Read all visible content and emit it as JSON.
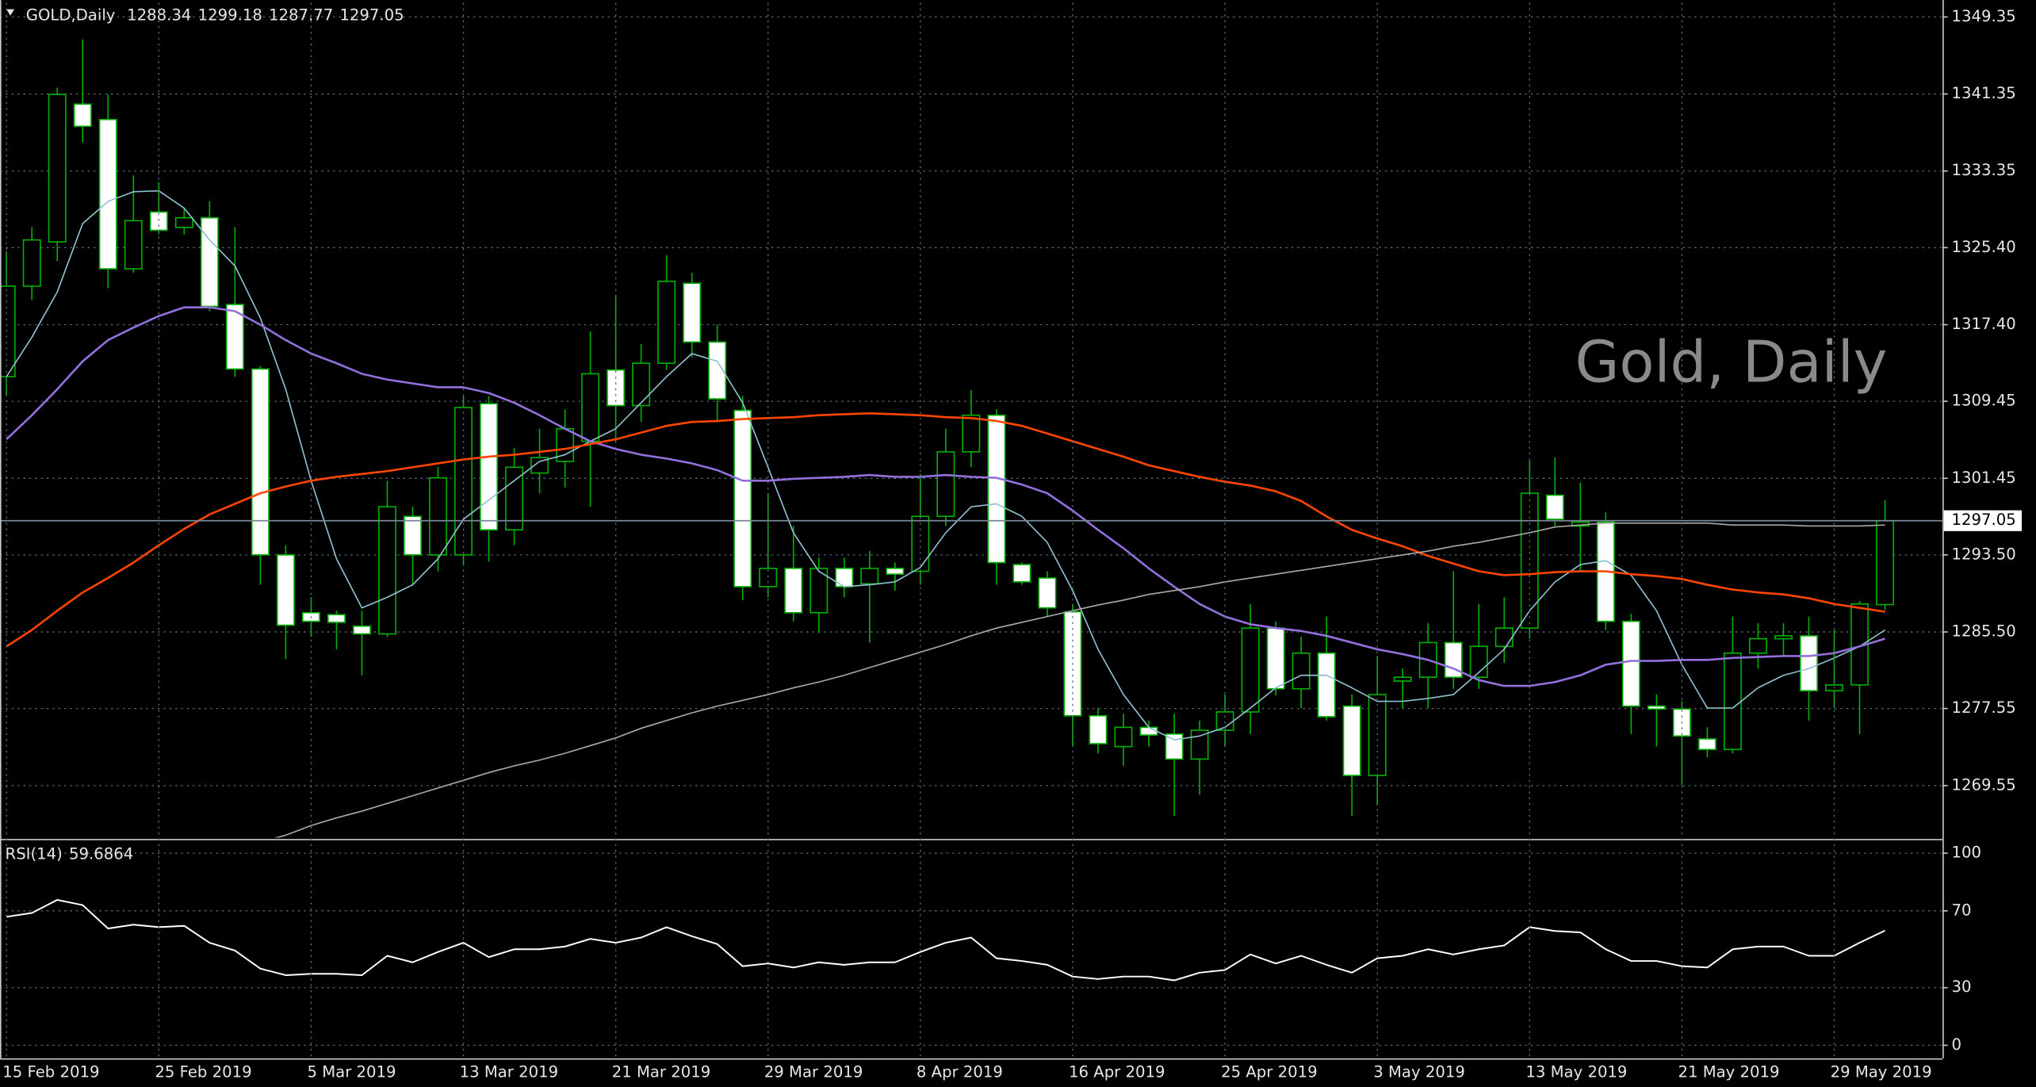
{
  "chart_data": [
    {
      "type": "candlestick",
      "title": "GOLD,Daily",
      "watermark": "Gold, Daily",
      "categories": [
        "15 Feb 2019",
        null,
        null,
        null,
        null,
        null,
        "25 Feb 2019",
        null,
        null,
        null,
        null,
        null,
        "5 Mar 2019",
        null,
        null,
        null,
        null,
        null,
        "13 Mar 2019",
        null,
        null,
        null,
        null,
        null,
        "21 Mar 2019",
        null,
        null,
        null,
        null,
        null,
        "29 Mar 2019",
        null,
        null,
        null,
        null,
        null,
        "8 Apr 2019",
        null,
        null,
        null,
        null,
        null,
        "16 Apr 2019",
        null,
        null,
        null,
        null,
        null,
        "25 Apr 2019",
        null,
        null,
        null,
        null,
        null,
        "3 May 2019",
        null,
        null,
        null,
        null,
        null,
        "13 May 2019",
        null,
        null,
        null,
        null,
        null,
        "21 May 2019",
        null,
        null,
        null,
        null,
        null,
        "29 May 2019",
        null,
        null
      ],
      "open": [
        1312.0,
        1321.4,
        1326.0,
        1340.3,
        1338.7,
        1323.2,
        1329.1,
        1327.5,
        1328.5,
        1319.5,
        1312.8,
        1293.5,
        1287.5,
        1287.3,
        1286.1,
        1285.3,
        1297.5,
        1293.5,
        1293.5,
        1309.2,
        1296.1,
        1302.0,
        1303.2,
        1305.3,
        1312.7,
        1309.0,
        1313.4,
        1321.7,
        1315.6,
        1308.5,
        1290.2,
        1292.1,
        1287.5,
        1292.1,
        1290.5,
        1292.1,
        1291.8,
        1297.5,
        1304.2,
        1308.0,
        1292.5,
        1291.1,
        1287.6,
        1276.8,
        1273.6,
        1275.6,
        1274.9,
        1272.3,
        1275.3,
        1277.2,
        1285.9,
        1279.6,
        1283.3,
        1277.8,
        1270.6,
        1280.4,
        1280.8,
        1284.4,
        1280.8,
        1284.0,
        1285.9,
        1299.7,
        1296.5,
        1296.9,
        1286.6,
        1277.8,
        1277.5,
        1274.4,
        1273.3,
        1283.3,
        1284.8,
        1285.1,
        1279.4,
        1280.0,
        1288.34
      ],
      "high": [
        1325.0,
        1327.5,
        1342.0,
        1347.0,
        1341.3,
        1332.9,
        1332.2,
        1329.5,
        1330.2,
        1327.5,
        1313.1,
        1294.5,
        1289.1,
        1287.7,
        1287.7,
        1301.2,
        1298.5,
        1302.6,
        1310.0,
        1310.0,
        1304.6,
        1306.6,
        1308.6,
        1316.7,
        1320.3,
        1315.4,
        1324.6,
        1322.8,
        1317.4,
        1310.0,
        1299.9,
        1296.5,
        1293.2,
        1293.2,
        1293.9,
        1292.7,
        1301.9,
        1306.6,
        1310.6,
        1308.6,
        1292.7,
        1291.8,
        1288.4,
        1277.6,
        1277.0,
        1276.3,
        1277.0,
        1276.3,
        1279.0,
        1288.4,
        1286.6,
        1285.0,
        1287.1,
        1279.0,
        1283.0,
        1281.7,
        1286.4,
        1291.8,
        1288.4,
        1289.1,
        1303.3,
        1303.6,
        1301.0,
        1297.9,
        1287.4,
        1279.0,
        1278.3,
        1275.6,
        1287.1,
        1286.4,
        1286.4,
        1287.1,
        1285.7,
        1288.7,
        1299.18
      ],
      "low": [
        1310.0,
        1320.0,
        1324.0,
        1336.3,
        1321.2,
        1322.8,
        1326.8,
        1326.8,
        1318.8,
        1312.0,
        1290.4,
        1282.7,
        1285.0,
        1283.7,
        1281.0,
        1285.0,
        1290.4,
        1291.8,
        1292.4,
        1292.8,
        1294.5,
        1299.9,
        1300.5,
        1298.5,
        1305.3,
        1307.3,
        1312.7,
        1314.0,
        1307.3,
        1288.8,
        1289.1,
        1286.6,
        1285.4,
        1289.1,
        1284.4,
        1289.8,
        1290.4,
        1296.5,
        1302.6,
        1290.4,
        1290.4,
        1287.1,
        1273.6,
        1272.9,
        1271.6,
        1273.6,
        1266.4,
        1268.6,
        1273.6,
        1274.9,
        1278.9,
        1277.6,
        1276.3,
        1266.4,
        1267.5,
        1277.6,
        1277.6,
        1279.6,
        1279.6,
        1282.3,
        1284.8,
        1296.5,
        1291.8,
        1285.7,
        1274.9,
        1273.6,
        1269.6,
        1272.5,
        1272.9,
        1281.7,
        1283.0,
        1276.3,
        1277.6,
        1274.9,
        1287.77
      ],
      "close": [
        1321.4,
        1326.2,
        1341.3,
        1338.0,
        1323.2,
        1328.2,
        1327.2,
        1328.5,
        1319.3,
        1312.8,
        1293.5,
        1286.2,
        1286.6,
        1286.5,
        1285.3,
        1298.5,
        1293.5,
        1301.5,
        1308.8,
        1296.1,
        1302.6,
        1303.6,
        1306.6,
        1312.3,
        1309.0,
        1313.4,
        1321.9,
        1315.6,
        1309.7,
        1290.2,
        1292.1,
        1287.5,
        1292.1,
        1290.2,
        1292.1,
        1291.5,
        1297.5,
        1304.2,
        1308.0,
        1292.7,
        1290.7,
        1288.0,
        1276.8,
        1273.9,
        1275.6,
        1274.8,
        1272.3,
        1275.3,
        1277.2,
        1285.9,
        1279.6,
        1283.3,
        1276.7,
        1270.6,
        1279.0,
        1280.8,
        1284.4,
        1280.8,
        1284.0,
        1285.9,
        1299.9,
        1297.2,
        1296.9,
        1286.6,
        1277.8,
        1277.5,
        1274.7,
        1273.3,
        1283.3,
        1284.8,
        1285.1,
        1279.4,
        1280.0,
        1288.4,
        1297.05
      ],
      "candle_color": "#00b000",
      "bull_fill": "#000000",
      "bear_fill": "#ffffff",
      "price_line_color": "#778899",
      "overlays": [
        {
          "color": "#8fc0d0",
          "values": [
            1312.0,
            1316.1,
            1320.8,
            1327.9,
            1330.2,
            1331.2,
            1331.3,
            1329.5,
            1326.2,
            1323.5,
            1318.1,
            1310.7,
            1301.2,
            1293.1,
            1288.0,
            1289.1,
            1290.4,
            1293.1,
            1297.2,
            1299.2,
            1301.2,
            1303.2,
            1303.9,
            1305.3,
            1306.6,
            1309.3,
            1312.0,
            1314.4,
            1313.6,
            1309.3,
            1302.6,
            1295.8,
            1291.8,
            1290.2,
            1290.4,
            1290.7,
            1292.2,
            1295.8,
            1298.5,
            1298.8,
            1297.5,
            1294.8,
            1289.8,
            1283.7,
            1279.0,
            1275.6,
            1274.3,
            1274.7,
            1275.6,
            1277.6,
            1279.7,
            1281.0,
            1281.0,
            1279.7,
            1278.3,
            1278.3,
            1278.6,
            1279.0,
            1281.3,
            1283.7,
            1287.7,
            1290.7,
            1292.5,
            1292.9,
            1291.4,
            1287.7,
            1282.1,
            1277.6,
            1277.6,
            1279.7,
            1281.0,
            1281.7,
            1282.8,
            1284.0,
            1285.7
          ]
        },
        {
          "color": "#9370db",
          "values": [
            1305.5,
            1308.0,
            1310.7,
            1313.6,
            1315.8,
            1317.1,
            1318.3,
            1319.2,
            1319.2,
            1318.8,
            1317.4,
            1315.8,
            1314.4,
            1313.4,
            1312.3,
            1311.7,
            1311.3,
            1310.9,
            1310.9,
            1310.3,
            1309.3,
            1308.0,
            1306.6,
            1305.3,
            1304.5,
            1303.9,
            1303.5,
            1303.0,
            1302.3,
            1301.2,
            1301.2,
            1301.4,
            1301.5,
            1301.6,
            1301.8,
            1301.6,
            1301.6,
            1301.8,
            1301.6,
            1301.5,
            1300.8,
            1299.9,
            1298.1,
            1296.1,
            1294.2,
            1292.1,
            1290.2,
            1288.4,
            1287.1,
            1286.3,
            1285.9,
            1285.6,
            1285.1,
            1284.4,
            1283.7,
            1283.2,
            1282.6,
            1281.7,
            1280.5,
            1279.9,
            1279.9,
            1280.3,
            1281.0,
            1282.1,
            1282.5,
            1282.5,
            1282.6,
            1282.6,
            1282.8,
            1282.9,
            1283.0,
            1283.0,
            1283.3,
            1284.0,
            1284.8
          ]
        },
        {
          "color": "#ff4500",
          "values": [
            1284.0,
            1285.7,
            1287.7,
            1289.6,
            1291.1,
            1292.7,
            1294.5,
            1296.2,
            1297.7,
            1298.8,
            1299.9,
            1300.6,
            1301.2,
            1301.6,
            1301.9,
            1302.2,
            1302.6,
            1303.0,
            1303.4,
            1303.7,
            1303.9,
            1304.2,
            1304.5,
            1305.0,
            1305.5,
            1306.2,
            1306.9,
            1307.3,
            1307.4,
            1307.6,
            1307.7,
            1307.8,
            1308.0,
            1308.1,
            1308.2,
            1308.1,
            1308.0,
            1307.8,
            1307.7,
            1307.4,
            1306.9,
            1306.1,
            1305.3,
            1304.5,
            1303.7,
            1302.8,
            1302.2,
            1301.6,
            1301.1,
            1300.7,
            1300.1,
            1299.1,
            1297.5,
            1296.1,
            1295.2,
            1294.4,
            1293.4,
            1292.6,
            1291.8,
            1291.4,
            1291.5,
            1291.7,
            1291.8,
            1291.8,
            1291.5,
            1291.3,
            1291.0,
            1290.4,
            1289.9,
            1289.6,
            1289.4,
            1289.0,
            1288.4,
            1288.0,
            1287.6
          ]
        },
        {
          "color": "#a9a9a9",
          "values": [
            null,
            null,
            null,
            null,
            null,
            null,
            null,
            null,
            null,
            null,
            1263.7,
            1264.4,
            1265.4,
            1266.2,
            1266.9,
            1267.7,
            1268.5,
            1269.3,
            1270.1,
            1270.9,
            1271.6,
            1272.2,
            1272.9,
            1273.7,
            1274.5,
            1275.5,
            1276.3,
            1277.1,
            1277.8,
            1278.4,
            1279.0,
            1279.7,
            1280.3,
            1281.0,
            1281.8,
            1282.6,
            1283.4,
            1284.2,
            1285.1,
            1285.9,
            1286.5,
            1287.1,
            1287.7,
            1288.3,
            1288.8,
            1289.4,
            1289.8,
            1290.2,
            1290.7,
            1291.1,
            1291.5,
            1291.9,
            1292.3,
            1292.7,
            1293.1,
            1293.5,
            1293.9,
            1294.4,
            1294.8,
            1295.3,
            1295.8,
            1296.4,
            1296.6,
            1296.8,
            1296.8,
            1296.8,
            1296.8,
            1296.8,
            1296.6,
            1296.6,
            1296.6,
            1296.5,
            1296.5,
            1296.5,
            1296.6
          ]
        }
      ],
      "ylim": [
        1264.15,
        1350.83
      ],
      "yticks": [
        1269.55,
        1277.55,
        {
          "value": 1285.5,
          "label": "1285.50"
        },
        {
          "value": 1293.5,
          "label": "1293.50"
        },
        1301.45,
        1309.45,
        {
          "value": 1317.4,
          "label": "1317.40"
        },
        {
          "value": 1325.4,
          "label": "1325.40"
        },
        1333.35,
        1341.35,
        1349.35
      ],
      "grid": true
    },
    {
      "type": "line",
      "title": "RSI(14)",
      "color": "#ffffff",
      "values": [
        66.9,
        68.9,
        75.7,
        73.0,
        60.8,
        62.8,
        61.5,
        62.2,
        53.4,
        49.3,
        39.9,
        36.5,
        37.2,
        37.2,
        36.5,
        46.6,
        43.2,
        48.6,
        53.4,
        45.9,
        50.0,
        50.0,
        51.4,
        55.4,
        53.4,
        56.1,
        61.5,
        56.8,
        52.7,
        41.2,
        42.6,
        40.5,
        43.2,
        41.9,
        43.2,
        43.2,
        48.6,
        53.4,
        56.1,
        45.3,
        43.9,
        41.9,
        35.8,
        34.5,
        35.8,
        35.8,
        33.8,
        37.8,
        39.2,
        47.3,
        42.6,
        46.6,
        41.9,
        37.8,
        45.3,
        46.6,
        50.0,
        47.3,
        50.0,
        52.0,
        61.5,
        59.5,
        58.8,
        50.0,
        43.9,
        43.9,
        41.2,
        40.5,
        50.0,
        51.4,
        51.4,
        46.6,
        46.6,
        53.4,
        59.6864
      ],
      "ylim": [
        -6.8,
        106.1
      ],
      "yticks": [
        0,
        30,
        70,
        100
      ],
      "grid": true
    }
  ]
}
